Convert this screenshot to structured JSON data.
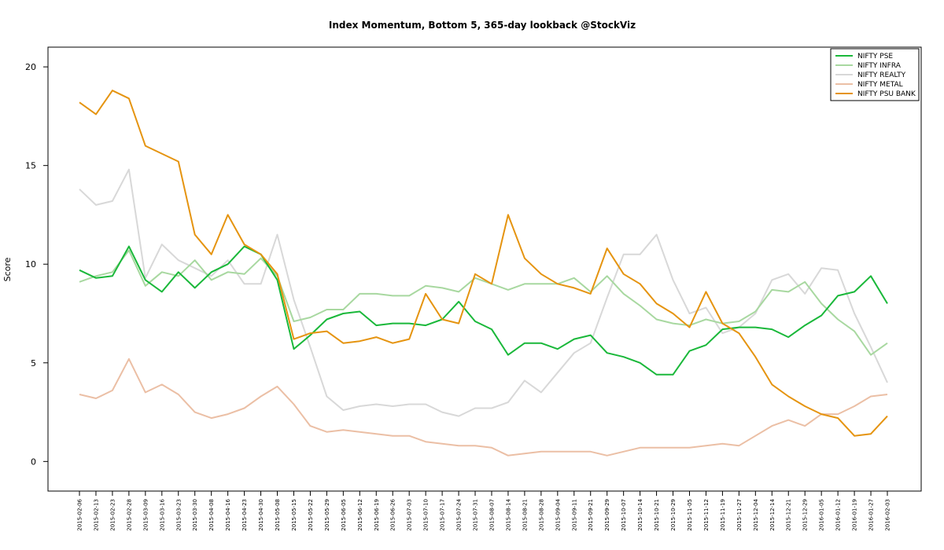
{
  "chart_data": {
    "type": "line",
    "title": "Index Momentum, Bottom 5, 365-day lookback @StockViz",
    "xlabel": "",
    "ylabel": "Score",
    "ylim": [
      -1.5,
      21
    ],
    "yticks": [
      0,
      5,
      10,
      15,
      20
    ],
    "grid": false,
    "legend_position": "top-right",
    "x_tick_labels": [
      "2015-02-06",
      "2015-02-13",
      "2015-02-23",
      "2015-02-28",
      "2015-03-09",
      "2015-03-16",
      "2015-03-23",
      "2015-03-30",
      "2015-04-08",
      "2015-04-16",
      "2015-04-23",
      "2015-04-30",
      "2015-05-08",
      "2015-05-15",
      "2015-05-22",
      "2015-05-29",
      "2015-06-05",
      "2015-06-12",
      "2015-06-19",
      "2015-06-26",
      "2015-07-03",
      "2015-07-10",
      "2015-07-17",
      "2015-07-24",
      "2015-07-31",
      "2015-08-07",
      "2015-08-14",
      "2015-08-21",
      "2015-08-28",
      "2015-09-04",
      "2015-09-11",
      "2015-09-21",
      "2015-09-29",
      "2015-10-07",
      "2015-10-14",
      "2015-10-21",
      "2015-10-29",
      "2015-11-05",
      "2015-11-12",
      "2015-11-19",
      "2015-11-27",
      "2015-12-04",
      "2015-12-14",
      "2015-12-21",
      "2015-12-29",
      "2016-01-05",
      "2016-01-12",
      "2016-01-19",
      "2016-01-27",
      "2016-02-03"
    ],
    "series": [
      {
        "name": "NIFTY PSE",
        "color": "#1ab83a",
        "values": [
          9.7,
          9.3,
          9.4,
          10.9,
          9.2,
          8.6,
          9.6,
          8.8,
          9.6,
          10.0,
          10.9,
          10.5,
          9.2,
          5.7,
          6.4,
          7.2,
          7.5,
          7.6,
          6.9,
          7.0,
          7.0,
          6.9,
          7.2,
          8.1,
          7.1,
          6.7,
          5.4,
          6.0,
          6.0,
          5.7,
          6.2,
          6.4,
          5.5,
          5.3,
          5.0,
          4.4,
          4.4,
          5.6,
          5.9,
          6.7,
          6.8,
          6.8,
          6.7,
          6.3,
          6.9,
          7.4,
          8.4,
          8.6,
          9.4,
          8.0
        ]
      },
      {
        "name": "NIFTY INFRA",
        "color": "#a8d8a0",
        "values": [
          9.1,
          9.4,
          9.6,
          10.7,
          8.9,
          9.6,
          9.4,
          10.2,
          9.2,
          9.6,
          9.5,
          10.3,
          9.4,
          7.1,
          7.3,
          7.7,
          7.7,
          8.5,
          8.5,
          8.4,
          8.4,
          8.9,
          8.8,
          8.6,
          9.3,
          9.0,
          8.7,
          9.0,
          9.0,
          9.0,
          9.3,
          8.6,
          9.4,
          8.5,
          7.9,
          7.2,
          7.0,
          6.9,
          7.2,
          7.0,
          7.1,
          7.6,
          8.7,
          8.6,
          9.1,
          8.0,
          7.2,
          6.6,
          5.4,
          6.0
        ]
      },
      {
        "name": "NIFTY REALTY",
        "color": "#d8d8d8",
        "values": [
          13.8,
          13.0,
          13.2,
          14.8,
          9.3,
          11.0,
          10.2,
          9.8,
          9.4,
          10.2,
          9.0,
          9.0,
          11.5,
          8.2,
          5.8,
          3.3,
          2.6,
          2.8,
          2.9,
          2.8,
          2.9,
          2.9,
          2.5,
          2.3,
          2.7,
          2.7,
          3.0,
          4.1,
          3.5,
          4.5,
          5.5,
          6.0,
          8.3,
          10.5,
          10.5,
          11.5,
          9.2,
          7.5,
          7.8,
          6.5,
          6.8,
          7.5,
          9.2,
          9.5,
          8.5,
          9.8,
          9.7,
          7.5,
          5.8,
          4.0
        ]
      },
      {
        "name": "NIFTY METAL",
        "color": "#ebbfa5",
        "values": [
          3.4,
          3.2,
          3.6,
          5.2,
          3.5,
          3.9,
          3.4,
          2.5,
          2.2,
          2.4,
          2.7,
          3.3,
          3.8,
          2.9,
          1.8,
          1.5,
          1.6,
          1.5,
          1.4,
          1.3,
          1.3,
          1.0,
          0.9,
          0.8,
          0.8,
          0.7,
          0.3,
          0.4,
          0.5,
          0.5,
          0.5,
          0.5,
          0.3,
          0.5,
          0.7,
          0.7,
          0.7,
          0.7,
          0.8,
          0.9,
          0.8,
          1.3,
          1.8,
          2.1,
          1.8,
          2.4,
          2.4,
          2.8,
          3.3,
          3.4
        ]
      },
      {
        "name": "NIFTY PSU BANK",
        "color": "#e59410",
        "values": [
          18.2,
          17.6,
          18.8,
          18.4,
          16.0,
          15.6,
          15.2,
          11.5,
          10.5,
          12.5,
          11.0,
          10.5,
          9.5,
          6.2,
          6.5,
          6.6,
          6.0,
          6.1,
          6.3,
          6.0,
          6.2,
          8.5,
          7.2,
          7.0,
          9.5,
          9.0,
          12.5,
          10.3,
          9.5,
          9.0,
          8.8,
          8.5,
          10.8,
          9.5,
          9.0,
          8.0,
          7.5,
          6.8,
          8.6,
          7.0,
          6.5,
          5.3,
          3.9,
          3.3,
          2.8,
          2.4,
          2.2,
          1.3,
          1.4,
          2.3
        ]
      }
    ]
  }
}
